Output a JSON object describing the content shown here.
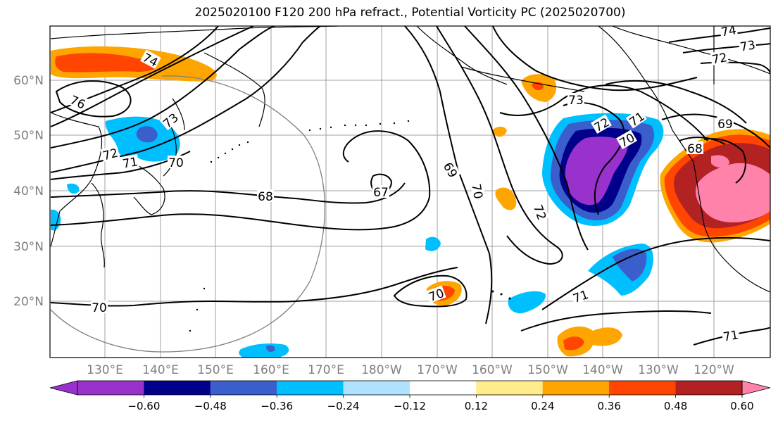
{
  "title": "2025020100 F120 200 hPa refract., Potential Vorticity PC (2025020700)",
  "lat_labels": [
    "60°N",
    "50°N",
    "40°N",
    "30°N",
    "20°N"
  ],
  "lon_labels": [
    "130°E",
    "140°E",
    "150°E",
    "160°E",
    "170°E",
    "180°W",
    "170°W",
    "160°W",
    "150°W",
    "140°W",
    "130°W",
    "120°W"
  ],
  "contour_labels": [
    "74",
    "76",
    "73",
    "72",
    "71",
    "70",
    "68",
    "67",
    "69",
    "70",
    "72",
    "73",
    "72",
    "71",
    "70",
    "69",
    "68",
    "70",
    "71",
    "70",
    "71",
    "74",
    "73",
    "72"
  ],
  "colorbar": {
    "ticks": [
      "−0.60",
      "−0.48",
      "−0.36",
      "−0.24",
      "−0.12",
      "0.12",
      "0.24",
      "0.36",
      "0.48",
      "0.60"
    ],
    "colors": [
      "#9932CC",
      "#00008B",
      "#3A5ECC",
      "#00BFFF",
      "#B0E2FF",
      "#FFFFFF",
      "#FFEC8B",
      "#FFA500",
      "#FF4500",
      "#B22222",
      "#FF82AB"
    ]
  }
}
